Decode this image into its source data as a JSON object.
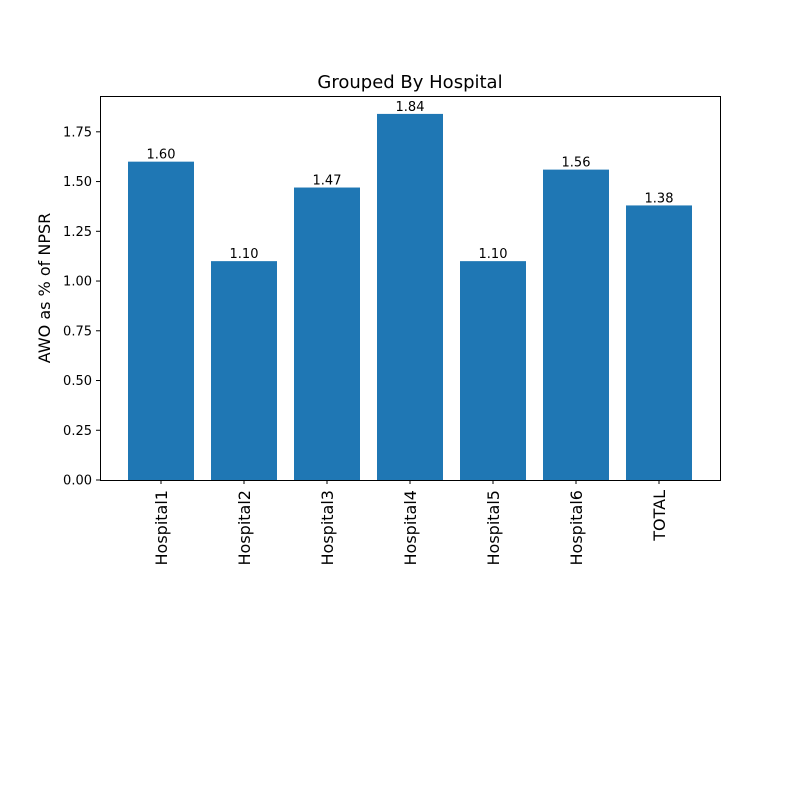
{
  "chart_data": {
    "type": "bar",
    "title": "Grouped By Hospital",
    "xlabel": "",
    "ylabel": "AWO as % of NPSR",
    "categories": [
      "Hospital1",
      "Hospital2",
      "Hospital3",
      "Hospital4",
      "Hospital5",
      "Hospital6",
      "TOTAL"
    ],
    "values": [
      1.6,
      1.1,
      1.47,
      1.84,
      1.1,
      1.56,
      1.38
    ],
    "data_labels": [
      "1.60",
      "1.10",
      "1.47",
      "1.84",
      "1.10",
      "1.56",
      "1.38"
    ],
    "ylim": [
      0,
      1.93
    ],
    "yticks": [
      0.0,
      0.25,
      0.5,
      0.75,
      1.0,
      1.25,
      1.5,
      1.75
    ],
    "ytick_labels": [
      "0.00",
      "0.25",
      "0.50",
      "0.75",
      "1.00",
      "1.25",
      "1.50",
      "1.75"
    ],
    "grid": false,
    "bar_color": "#1f77b4",
    "legend": "none"
  }
}
